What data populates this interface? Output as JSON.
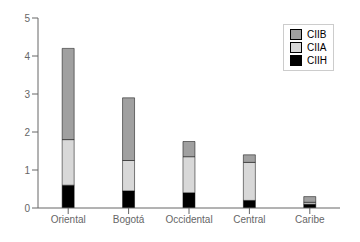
{
  "chart_data": {
    "type": "bar",
    "stacked": true,
    "categories": [
      "Oriental",
      "Bogotá",
      "Occidental",
      "Central",
      "Caribe"
    ],
    "series": [
      {
        "name": "CIIH",
        "color": "#000000",
        "values": [
          0.6,
          0.45,
          0.4,
          0.2,
          0.1
        ]
      },
      {
        "name": "CIIA",
        "color": "#d8d8d8",
        "values": [
          1.2,
          0.8,
          0.95,
          1.0,
          0.05
        ]
      },
      {
        "name": "CIIB",
        "color": "#a0a0a0",
        "values": [
          2.4,
          1.65,
          0.4,
          0.2,
          0.15
        ]
      }
    ],
    "ylim": [
      0,
      5
    ],
    "yticks": [
      0,
      1,
      2,
      3,
      4,
      5
    ],
    "grid": false,
    "legend": "upper right"
  }
}
